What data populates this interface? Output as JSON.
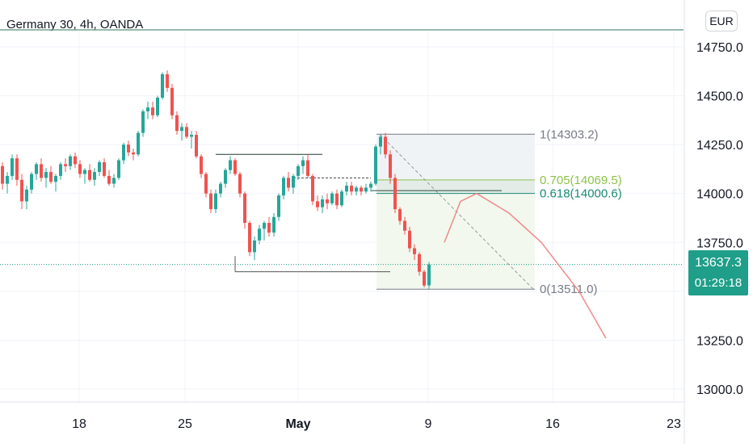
{
  "header": {
    "title": "Germany 30, 4h, OANDA",
    "currency": "EUR"
  },
  "last_price": {
    "value": "13637.3",
    "countdown": "01:29:18"
  },
  "colors": {
    "up": "#26a69a",
    "down": "#ef5350",
    "accent": "#1f9e89",
    "axis_text": "#131722",
    "grid": "#f0f3fa"
  },
  "chart_data": {
    "type": "candlestick",
    "title": "Germany 30, 4h, OANDA",
    "xlabel": "",
    "ylabel": "",
    "ylim": [
      12950,
      14850
    ],
    "y_ticks": [
      "14750.0",
      "14500.0",
      "14250.0",
      "14000.0",
      "13750.0",
      "13250.0",
      "13000.0"
    ],
    "x_ticks": [
      "18",
      "25",
      "May",
      "9",
      "16",
      "23"
    ],
    "grid": true,
    "candles": [
      [
        14200,
        14230,
        14120,
        14140
      ],
      [
        14140,
        14160,
        14020,
        14050
      ],
      [
        14050,
        14110,
        14000,
        14090
      ],
      [
        14090,
        14200,
        14070,
        14180
      ],
      [
        14180,
        14200,
        14040,
        14070
      ],
      [
        14070,
        14100,
        13920,
        13960
      ],
      [
        13960,
        14040,
        13920,
        14020
      ],
      [
        14020,
        14110,
        14000,
        14100
      ],
      [
        14100,
        14160,
        14070,
        14150
      ],
      [
        14150,
        14180,
        14060,
        14080
      ],
      [
        14080,
        14130,
        14030,
        14110
      ],
      [
        14110,
        14140,
        14050,
        14060
      ],
      [
        14060,
        14100,
        14010,
        14090
      ],
      [
        14090,
        14160,
        14070,
        14150
      ],
      [
        14150,
        14180,
        14110,
        14140
      ],
      [
        14140,
        14200,
        14120,
        14190
      ],
      [
        14190,
        14210,
        14130,
        14150
      ],
      [
        14150,
        14170,
        14080,
        14100
      ],
      [
        14100,
        14130,
        14050,
        14120
      ],
      [
        14120,
        14150,
        14060,
        14070
      ],
      [
        14070,
        14130,
        14040,
        14110
      ],
      [
        14110,
        14170,
        14090,
        14160
      ],
      [
        14160,
        14180,
        14080,
        14090
      ],
      [
        14090,
        14120,
        14040,
        14050
      ],
      [
        14050,
        14100,
        14030,
        14080
      ],
      [
        14080,
        14180,
        14070,
        14170
      ],
      [
        14170,
        14260,
        14150,
        14250
      ],
      [
        14250,
        14270,
        14190,
        14210
      ],
      [
        14210,
        14230,
        14170,
        14200
      ],
      [
        14200,
        14320,
        14190,
        14310
      ],
      [
        14310,
        14430,
        14290,
        14420
      ],
      [
        14420,
        14470,
        14380,
        14440
      ],
      [
        14440,
        14470,
        14380,
        14400
      ],
      [
        14400,
        14500,
        14390,
        14490
      ],
      [
        14490,
        14620,
        14480,
        14610
      ],
      [
        14610,
        14630,
        14520,
        14540
      ],
      [
        14540,
        14560,
        14380,
        14400
      ],
      [
        14400,
        14420,
        14300,
        14320
      ],
      [
        14320,
        14360,
        14270,
        14340
      ],
      [
        14340,
        14360,
        14280,
        14290
      ],
      [
        14290,
        14320,
        14230,
        14300
      ],
      [
        14300,
        14320,
        14180,
        14190
      ],
      [
        14190,
        14200,
        14080,
        14100
      ],
      [
        14100,
        14110,
        13980,
        14000
      ],
      [
        14000,
        14020,
        13900,
        13920
      ],
      [
        13920,
        14020,
        13900,
        14000
      ],
      [
        14000,
        14060,
        13980,
        14050
      ],
      [
        14050,
        14130,
        14030,
        14120
      ],
      [
        14120,
        14190,
        14100,
        14170
      ],
      [
        14170,
        14180,
        14090,
        14100
      ],
      [
        14100,
        14110,
        13980,
        14000
      ],
      [
        14000,
        14010,
        13820,
        13850
      ],
      [
        13850,
        13860,
        13680,
        13700
      ],
      [
        13700,
        13780,
        13660,
        13760
      ],
      [
        13760,
        13840,
        13740,
        13820
      ],
      [
        13820,
        13860,
        13760,
        13850
      ],
      [
        13850,
        13880,
        13780,
        13800
      ],
      [
        13800,
        13900,
        13780,
        13880
      ],
      [
        13880,
        14000,
        13860,
        13990
      ],
      [
        13990,
        14090,
        13970,
        14080
      ],
      [
        14080,
        14110,
        14010,
        14030
      ],
      [
        14030,
        14100,
        14000,
        14090
      ],
      [
        14090,
        14150,
        14070,
        14140
      ],
      [
        14140,
        14190,
        14100,
        14170
      ],
      [
        14170,
        14200,
        14080,
        14090
      ],
      [
        14090,
        14100,
        13940,
        13960
      ],
      [
        13960,
        13990,
        13910,
        13930
      ],
      [
        13930,
        13990,
        13900,
        13970
      ],
      [
        13970,
        14000,
        13920,
        13950
      ],
      [
        13950,
        14010,
        13940,
        14000
      ],
      [
        14000,
        14020,
        13920,
        13940
      ],
      [
        13940,
        14020,
        13930,
        14010
      ],
      [
        14010,
        14060,
        13990,
        14040
      ],
      [
        14040,
        14060,
        13990,
        14010
      ],
      [
        14010,
        14040,
        13990,
        14030
      ],
      [
        14030,
        14040,
        13990,
        14010
      ],
      [
        14010,
        14050,
        14000,
        14030
      ],
      [
        14030,
        14060,
        14010,
        14050
      ],
      [
        14050,
        14250,
        14040,
        14240
      ],
      [
        14240,
        14300,
        14200,
        14290
      ],
      [
        14290,
        14310,
        14180,
        14200
      ],
      [
        14200,
        14220,
        14050,
        14080
      ],
      [
        14080,
        14100,
        13900,
        13920
      ],
      [
        13920,
        13930,
        13840,
        13860
      ],
      [
        13860,
        13880,
        13790,
        13810
      ],
      [
        13810,
        13830,
        13700,
        13720
      ],
      [
        13720,
        13740,
        13660,
        13690
      ],
      [
        13690,
        13700,
        13580,
        13600
      ],
      [
        13600,
        13610,
        13520,
        13530
      ],
      [
        13530,
        13650,
        13511,
        13637
      ]
    ],
    "fibonacci": [
      {
        "level": "1",
        "price": 14303.2,
        "label": "1(14303.2)"
      },
      {
        "level": "0.705",
        "price": 14069.5,
        "label": "0.705(14069.5)"
      },
      {
        "level": "0.618",
        "price": 14000.6,
        "label": "0.618(14000.6)"
      },
      {
        "level": "0",
        "price": 13511.0,
        "label": "0(13511.0)"
      }
    ],
    "horizontal_lines": [
      {
        "price": 14200,
        "from_index": 45,
        "to_index": 67
      },
      {
        "price": 13600,
        "from_index": 49,
        "to_index": 81
      },
      {
        "price": 14015,
        "from_index": 77,
        "to_index": 104
      }
    ],
    "dashed_lines": [
      {
        "price": 14080,
        "from_index": 61,
        "to_index": 77
      }
    ],
    "projection_curve": [
      [
        13750,
        0
      ],
      [
        13960,
        3
      ],
      [
        14000,
        6
      ],
      [
        13900,
        12
      ],
      [
        13750,
        18
      ],
      [
        13500,
        25
      ],
      [
        13260,
        30
      ]
    ]
  }
}
